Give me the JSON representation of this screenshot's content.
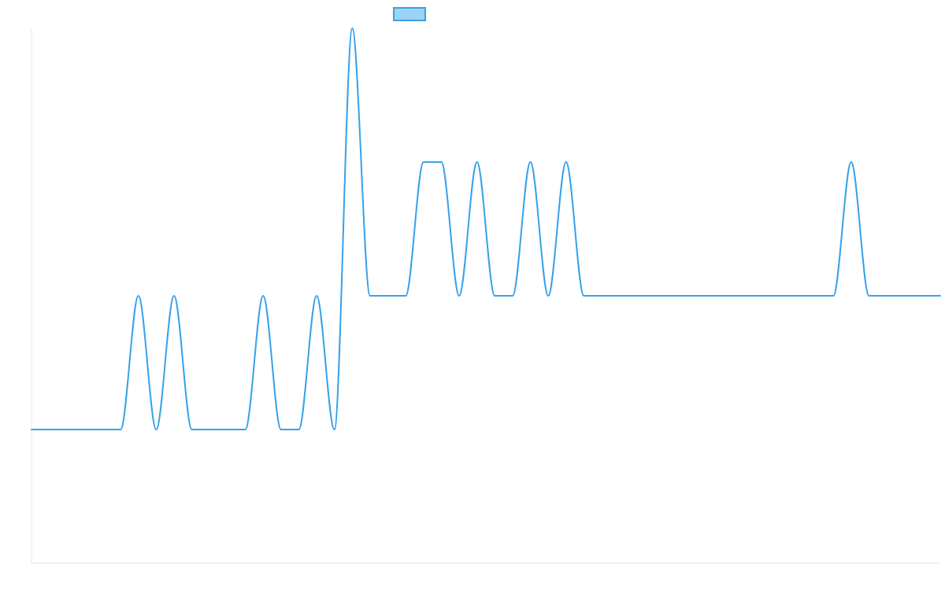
{
  "chart_data": {
    "type": "line",
    "title": "",
    "xlabel": "",
    "ylabel": "",
    "legend": {
      "placement": "top-center",
      "entries": [
        ""
      ]
    },
    "grid": false,
    "x_range": [
      0,
      51
    ],
    "ylim": [
      -1,
      3
    ],
    "series": [
      {
        "color": "#36A2EB",
        "x": [
          0,
          1,
          2,
          3,
          4,
          5,
          6,
          7,
          8,
          9,
          10,
          11,
          12,
          13,
          14,
          15,
          16,
          17,
          18,
          19,
          20,
          21,
          22,
          23,
          24,
          25,
          26,
          27,
          28,
          29,
          30,
          31,
          32,
          33,
          34,
          35,
          36,
          37,
          38,
          39,
          40,
          41,
          42,
          43,
          44,
          45,
          46,
          47,
          48,
          49,
          50,
          51
        ],
        "values": [
          0,
          0,
          0,
          0,
          0,
          0,
          1,
          0,
          1,
          0,
          0,
          0,
          0,
          1,
          0,
          0,
          1,
          0,
          3,
          1,
          1,
          1,
          2,
          2,
          1,
          2,
          1,
          1,
          2,
          1,
          2,
          1,
          1,
          1,
          1,
          1,
          1,
          1,
          1,
          1,
          1,
          1,
          1,
          1,
          1,
          1,
          2,
          1,
          1,
          1,
          1,
          1
        ]
      }
    ]
  }
}
